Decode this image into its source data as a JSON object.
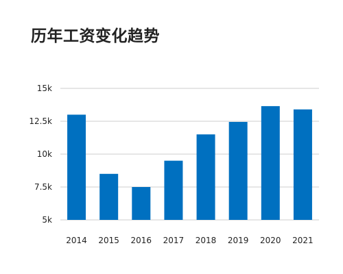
{
  "chart_data": {
    "type": "bar",
    "title": "历年工资变化趋势",
    "categories": [
      "2014",
      "2015",
      "2016",
      "2017",
      "2018",
      "2019",
      "2020",
      "2021"
    ],
    "values": [
      13000,
      8500,
      7500,
      9500,
      11500,
      12450,
      13650,
      13400
    ],
    "ylim": [
      5000,
      15000
    ],
    "yticks": [
      5000,
      7500,
      10000,
      12500,
      15000
    ],
    "ytick_labels": [
      "5k",
      "7.5k",
      "10k",
      "12.5k",
      "15k"
    ],
    "xlabel": "",
    "ylabel": "",
    "grid": true,
    "bar_color": "#0070C0",
    "grid_color": "#e6e6e6"
  }
}
